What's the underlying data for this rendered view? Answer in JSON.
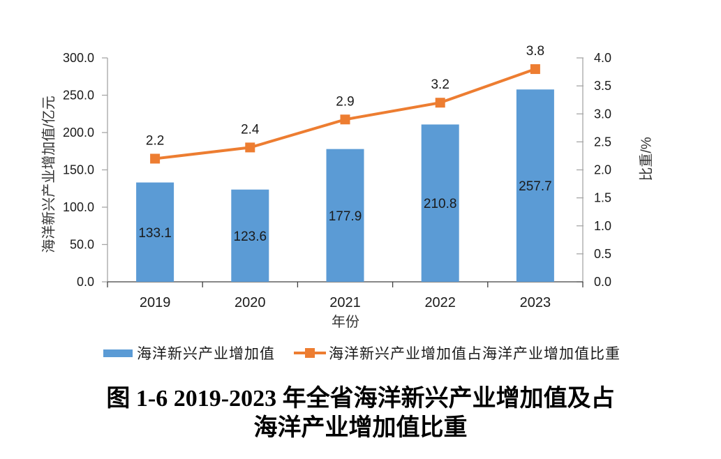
{
  "figure": {
    "caption_line1": "图 1-6 2019-2023 年全省海洋新兴产业增加值及占",
    "caption_line2": "海洋产业增加值比重"
  },
  "chart_data": {
    "type": "combo-bar-line",
    "categories": [
      "2019",
      "2020",
      "2021",
      "2022",
      "2023"
    ],
    "series": [
      {
        "name": "海洋新兴产业增加值",
        "type": "bar",
        "axis": "left",
        "color": "#5B9BD5",
        "values": [
          133.1,
          123.6,
          177.9,
          210.8,
          257.7
        ]
      },
      {
        "name": "海洋新兴产业增加值占海洋产业增加值比重",
        "type": "line",
        "axis": "right",
        "color": "#ED7D31",
        "marker": "square",
        "values": [
          2.2,
          2.4,
          2.9,
          3.2,
          3.8
        ]
      }
    ],
    "axes": {
      "left": {
        "label": "海洋新兴产业增加值/亿元",
        "min": 0,
        "max": 300,
        "step": 50,
        "decimals": 1
      },
      "right": {
        "label": "比重/%",
        "min": 0,
        "max": 4,
        "step": 0.5,
        "decimals": 1
      },
      "x": {
        "label": "年份"
      }
    },
    "grid": false,
    "data_labels": true,
    "legend_position": "bottom"
  }
}
